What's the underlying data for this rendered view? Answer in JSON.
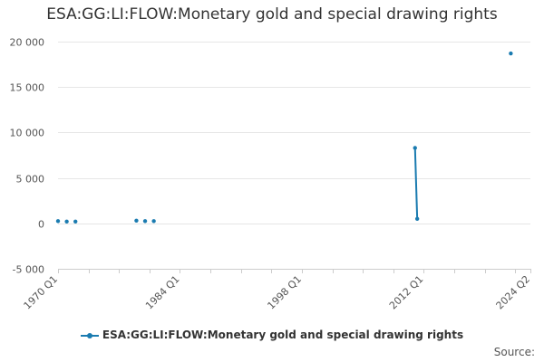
{
  "chart_data": {
    "type": "line",
    "title": "ESA:GG:LI:FLOW:Monetary gold and special drawing rights",
    "xlabel": "",
    "ylabel": "",
    "x_tick_labels": [
      "1970 Q1",
      "1984 Q1",
      "1998 Q1",
      "2012 Q1",
      "2024 Q2"
    ],
    "y_ticks": [
      -5000,
      0,
      5000,
      10000,
      15000,
      20000
    ],
    "y_tick_labels": [
      "-5 000",
      "0",
      "5 000",
      "10 000",
      "15 000",
      "20 000"
    ],
    "ylim": [
      -5000,
      20000
    ],
    "xlim": [
      "1970 Q1",
      "2024 Q2"
    ],
    "grid": "horizontal",
    "legend_position": "bottom",
    "series": [
      {
        "name": "ESA:GG:LI:FLOW:Monetary gold and special drawing rights",
        "color": "#1a7bb0",
        "points": [
          {
            "x": "1970 Q1",
            "y": 250
          },
          {
            "x": "1971 Q1",
            "y": 200
          },
          {
            "x": "1972 Q1",
            "y": 200
          },
          {
            "x": "1979 Q1",
            "y": 300
          },
          {
            "x": "1980 Q1",
            "y": 250
          },
          {
            "x": "1981 Q1",
            "y": 250
          },
          {
            "x": "2011 Q1",
            "y": 8300
          },
          {
            "x": "2011 Q2",
            "y": 500
          },
          {
            "x": "2022 Q1",
            "y": 18700
          }
        ]
      }
    ]
  },
  "legend": {
    "label": "ESA:GG:LI:FLOW:Monetary gold and special drawing rights"
  },
  "footer": {
    "source_label": "Source:"
  }
}
